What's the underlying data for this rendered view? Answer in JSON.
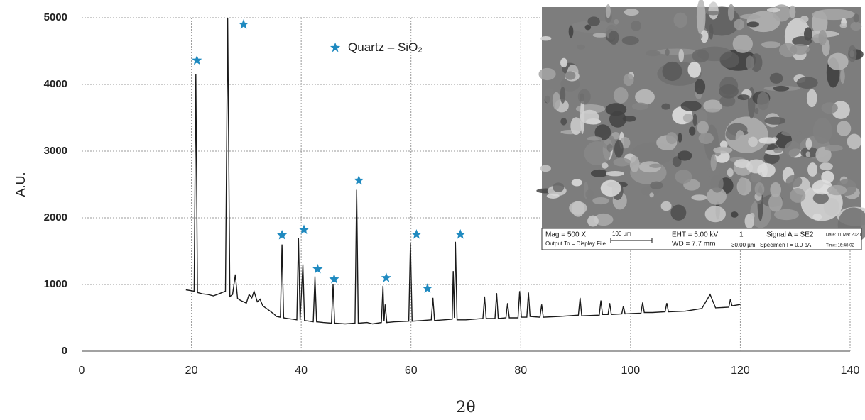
{
  "chart_data": {
    "type": "line",
    "ylabel": "A.U.",
    "xlabel": "2θ",
    "xlim": [
      0,
      140
    ],
    "xticks": [
      0,
      20,
      40,
      60,
      80,
      100,
      120,
      140
    ],
    "ylim": [
      0,
      5000
    ],
    "yticks": [
      0,
      1000,
      2000,
      3000,
      4000,
      5000
    ],
    "grid": true,
    "legend": "upper-center",
    "series": [
      {
        "type": "line",
        "color": "#1a1a1a",
        "x": [
          19,
          20.5,
          20.8,
          21.1,
          22,
          23,
          24,
          25,
          26.2,
          26.6,
          27,
          27.5,
          28,
          28.4,
          29,
          30,
          30.5,
          31,
          31.4,
          32,
          32.5,
          33,
          34,
          35,
          35.5,
          36.2,
          36.5,
          36.8,
          37.5,
          38.5,
          39.2,
          39.5,
          39.8,
          40.3,
          40.6,
          41.5,
          42.2,
          42.5,
          42.8,
          44,
          45.5,
          45.8,
          46.1,
          48,
          49.8,
          50.1,
          50.4,
          52,
          53,
          54.6,
          54.9,
          55.1,
          55.3,
          55.6,
          57,
          59.6,
          59.9,
          60.2,
          62,
          63.7,
          64,
          64.3,
          66,
          67.5,
          67.7,
          67.9,
          68.1,
          68.4,
          70,
          73.1,
          73.4,
          73.7,
          75.3,
          75.6,
          75.9,
          77.3,
          77.6,
          77.9,
          79.5,
          79.8,
          80.1,
          81.1,
          81.4,
          81.7,
          83.5,
          83.8,
          84.1,
          87,
          90.5,
          90.8,
          91.1,
          94.3,
          94.6,
          94.9,
          95.9,
          96.2,
          96.5,
          98.4,
          98.7,
          99,
          101.9,
          102.2,
          102.5,
          104,
          106.3,
          106.6,
          106.9,
          110,
          113,
          114.5,
          115.5,
          117.9,
          118.2,
          118.5,
          120
        ],
        "values": [
          920,
          900,
          4150,
          880,
          860,
          850,
          830,
          860,
          900,
          5000,
          820,
          850,
          1150,
          790,
          760,
          720,
          850,
          800,
          900,
          740,
          780,
          680,
          620,
          560,
          520,
          510,
          1600,
          500,
          490,
          480,
          470,
          1700,
          470,
          1300,
          460,
          450,
          440,
          1120,
          440,
          430,
          420,
          1000,
          420,
          410,
          420,
          2420,
          420,
          430,
          410,
          430,
          980,
          450,
          700,
          430,
          440,
          450,
          1620,
          450,
          460,
          470,
          800,
          460,
          470,
          480,
          1200,
          500,
          1640,
          470,
          470,
          490,
          820,
          490,
          490,
          870,
          490,
          500,
          720,
          500,
          500,
          900,
          510,
          510,
          880,
          520,
          510,
          700,
          510,
          520,
          540,
          800,
          530,
          540,
          760,
          550,
          550,
          720,
          550,
          560,
          680,
          560,
          570,
          730,
          580,
          580,
          590,
          720,
          590,
          600,
          640,
          850,
          650,
          660,
          780,
          680,
          700
        ]
      },
      {
        "type": "scatter",
        "name": "Quartz – SiO₂",
        "color": "#1f8ac0",
        "x": [
          21,
          29.5,
          36.5,
          40.5,
          43,
          46,
          50.5,
          55.5,
          61,
          63,
          69
        ],
        "values": [
          4360,
          4900,
          1740,
          1820,
          1230,
          1080,
          2560,
          1100,
          1750,
          940,
          1750
        ]
      }
    ]
  },
  "inset": {
    "magnification": "Mag =    500 X",
    "scale": "100 µm",
    "eht": "EHT =  5.00 kV",
    "wd": "WD =  7.7 mm",
    "detector_no": "1",
    "signal": "Signal A = SE2",
    "date": "Date: 11 Mar 2020",
    "output": "Output To = Display File",
    "pixel": "30.00 µm",
    "specimen": "Specimen I =   0.0 pA",
    "time": "Time: 16:48:02"
  }
}
